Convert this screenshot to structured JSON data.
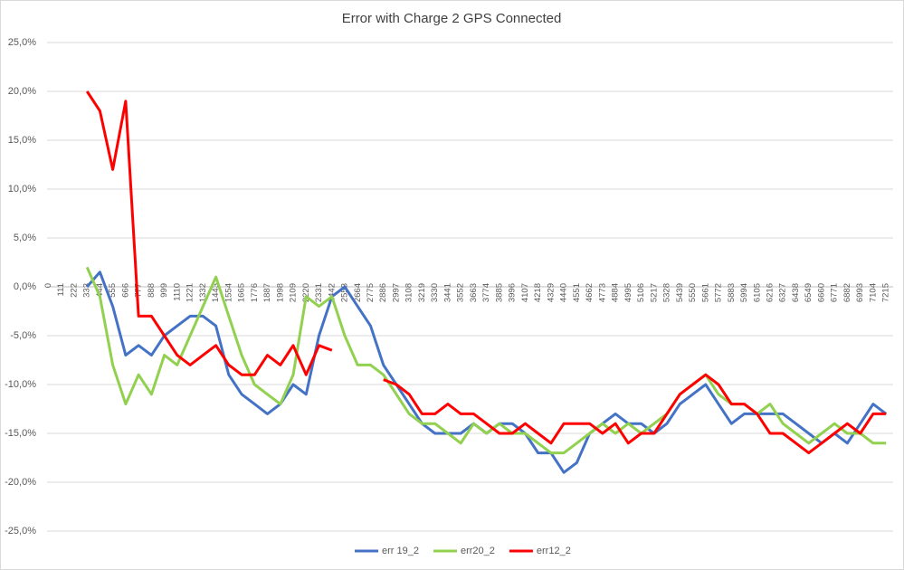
{
  "chart_data": {
    "type": "line",
    "title": "Error with Charge 2 GPS Connected",
    "categories": [
      0,
      111,
      222,
      333,
      444,
      555,
      666,
      777,
      888,
      999,
      1110,
      1221,
      1332,
      1443,
      1554,
      1665,
      1776,
      1887,
      1998,
      2109,
      2220,
      2331,
      2442,
      2553,
      2664,
      2775,
      2886,
      2997,
      3108,
      3219,
      3330,
      3441,
      3552,
      3663,
      3774,
      3885,
      3996,
      4107,
      4218,
      4329,
      4440,
      4551,
      4662,
      4773,
      4884,
      4995,
      5106,
      5217,
      5328,
      5439,
      5550,
      5661,
      5772,
      5883,
      5994,
      6105,
      6216,
      6327,
      6438,
      6549,
      6660,
      6771,
      6882,
      6993,
      7104,
      7215
    ],
    "series": [
      {
        "name": "err 19_2",
        "color": "#4472c4",
        "values": [
          null,
          null,
          null,
          0,
          1.5,
          -2,
          -7,
          -6,
          -7,
          -5,
          -4,
          -3,
          -3,
          -4,
          -9,
          -11,
          -12,
          -13,
          -12,
          -10,
          -11,
          -5,
          -1,
          0,
          -2,
          -4,
          -8,
          -10,
          -12,
          -14,
          -15,
          -15,
          -15,
          -14,
          -15,
          -14,
          -14,
          -15,
          -17,
          -17,
          -19,
          -18,
          -15,
          -14,
          -13,
          -14,
          -14,
          -15,
          -14,
          -12,
          -11,
          -10,
          -12,
          -14,
          -13,
          -13,
          -13,
          -13,
          -14,
          -15,
          -16,
          -15,
          -16,
          -14,
          -12,
          -13
        ]
      },
      {
        "name": "err20_2",
        "color": "#92d050",
        "values": [
          null,
          null,
          null,
          2,
          -1,
          -8,
          -12,
          -9,
          -11,
          -7,
          -8,
          -5,
          -2,
          1,
          -3,
          -7,
          -10,
          -11,
          -12,
          -9,
          -1,
          -2,
          -1,
          -5,
          -8,
          -8,
          -9,
          -11,
          -13,
          -14,
          -14,
          -15,
          -16,
          -14,
          -15,
          -14,
          -15,
          -15,
          -16,
          -17,
          -17,
          -16,
          -15,
          -14,
          -15,
          -14,
          -15,
          -14,
          -13,
          -11,
          -10,
          -9,
          -11,
          -12,
          -12,
          -13,
          -12,
          -14,
          -15,
          -16,
          -15,
          -14,
          -15,
          -15,
          -16,
          -16
        ]
      },
      {
        "name": "err12_2",
        "color": "#ff0000",
        "values": [
          null,
          null,
          null,
          20,
          18,
          12,
          19,
          -3,
          -3,
          -5,
          -7,
          -8,
          -7,
          -6,
          -8,
          -9,
          -9,
          -7,
          -8,
          -6,
          -9,
          -6,
          -6.5,
          null,
          null,
          null,
          -9.5,
          -10,
          -11,
          -13,
          -13,
          -12,
          -13,
          -13,
          -14,
          -15,
          -15,
          -14,
          -15,
          -16,
          -14,
          -14,
          -14,
          -15,
          -14,
          -16,
          -15,
          -15,
          -13,
          -11,
          -10,
          -9,
          -10,
          -12,
          -12,
          -13,
          -15,
          -15,
          -16,
          -17,
          -16,
          -15,
          -14,
          -15,
          -13,
          -13
        ]
      }
    ],
    "ylim": [
      -25,
      25
    ],
    "yticks": [
      {
        "value": -25,
        "label": "-25,0%"
      },
      {
        "value": -20,
        "label": "-20,0%"
      },
      {
        "value": -15,
        "label": "-15,0%"
      },
      {
        "value": -10,
        "label": "-10,0%"
      },
      {
        "value": -5,
        "label": "-5,0%"
      },
      {
        "value": 0,
        "label": "0,0%"
      },
      {
        "value": 5,
        "label": "5,0%"
      },
      {
        "value": 10,
        "label": "10,0%"
      },
      {
        "value": 15,
        "label": "15,0%"
      },
      {
        "value": 20,
        "label": "20,0%"
      },
      {
        "value": 25,
        "label": "25,0%"
      }
    ],
    "grid": true,
    "legend": "bottom"
  }
}
